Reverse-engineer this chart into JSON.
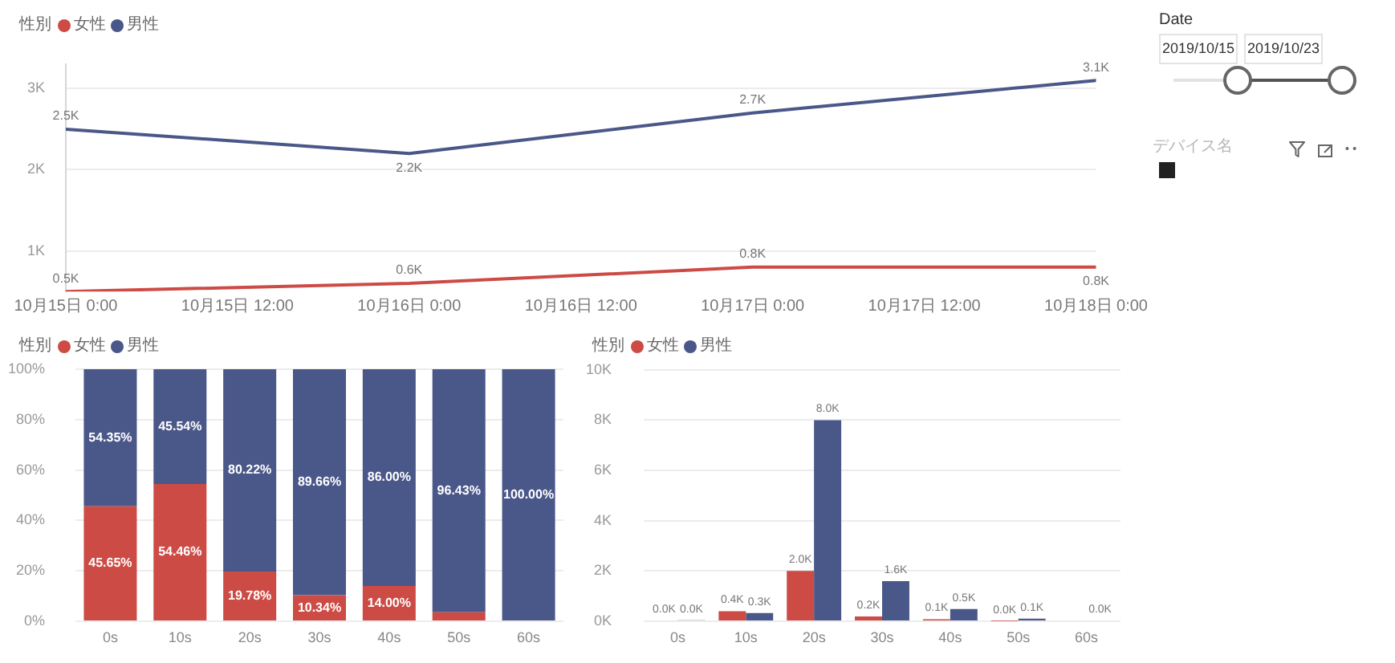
{
  "chart_data": [
    {
      "type": "line",
      "x": [
        "2019-10-15T00:00",
        "2019-10-16T00:00",
        "2019-10-17T00:00",
        "2019-10-18T00:00"
      ],
      "series": [
        {
          "name": "女性",
          "color": "#cd4b45",
          "values": [
            500,
            600,
            800,
            800
          ],
          "value_labels": [
            "0.5K",
            "0.6K",
            "0.8K",
            "0.8K"
          ]
        },
        {
          "name": "男性",
          "color": "#4a5789",
          "values": [
            2500,
            2200,
            2700,
            3100
          ],
          "value_labels": [
            "2.5K",
            "2.2K",
            "2.7K",
            "3.1K"
          ]
        }
      ],
      "xlim": [
        "2019-10-15T00:00",
        "2019-10-18T00:00"
      ],
      "xticks": [
        {
          "value": "2019-10-15T00:00",
          "label": "10月15日 0:00"
        },
        {
          "value": "2019-10-15T12:00",
          "label": "10月15日 12:00"
        },
        {
          "value": "2019-10-16T00:00",
          "label": "10月16日 0:00"
        },
        {
          "value": "2019-10-16T12:00",
          "label": "10月16日 12:00"
        },
        {
          "value": "2019-10-17T00:00",
          "label": "10月17日 0:00"
        },
        {
          "value": "2019-10-17T12:00",
          "label": "10月17日 12:00"
        },
        {
          "value": "2019-10-18T00:00",
          "label": "10月18日 0:00"
        }
      ],
      "ylim": [
        500,
        3300
      ],
      "yticks": [
        {
          "value": 1000,
          "label": "1K"
        },
        {
          "value": 2000,
          "label": "2K"
        },
        {
          "value": 3000,
          "label": "3K"
        }
      ],
      "legend_title": "性別",
      "legend": "top left",
      "grid": "y"
    },
    {
      "type": "other",
      "title": "Date",
      "annotations": [
        "2019/10/15",
        "2019/10/23",
        "デバイス名"
      ]
    },
    {
      "type": "bar",
      "stacked": true,
      "categories": [
        "0s",
        "10s",
        "20s",
        "30s",
        "40s",
        "50s",
        "60s"
      ],
      "series": [
        {
          "name": "女性",
          "color": "#cd4b45",
          "values": [
            45.65,
            54.46,
            19.78,
            10.34,
            14.0,
            3.6,
            0
          ],
          "value_labels": [
            "45.65%",
            "54.46%",
            "19.78%",
            "10.34%",
            "14.00%",
            null,
            null
          ]
        },
        {
          "name": "男性",
          "color": "#4a5789",
          "values": [
            54.35,
            45.54,
            80.22,
            89.66,
            86.0,
            96.43,
            100.0
          ],
          "value_labels": [
            "54.35%",
            "45.54%",
            "80.22%",
            "89.66%",
            "86.00%",
            "96.43%",
            "100.00%"
          ]
        }
      ],
      "ylim": [
        0,
        100
      ],
      "yticks": [
        {
          "value": 0,
          "label": "0%"
        },
        {
          "value": 20,
          "label": "20%"
        },
        {
          "value": 40,
          "label": "40%"
        },
        {
          "value": 60,
          "label": "60%"
        },
        {
          "value": 80,
          "label": "80%"
        },
        {
          "value": 100,
          "label": "100%"
        }
      ],
      "legend_title": "性別",
      "legend": "top left",
      "grid": "y"
    },
    {
      "type": "bar",
      "categories": [
        "0s",
        "10s",
        "20s",
        "30s",
        "40s",
        "50s",
        "60s"
      ],
      "series": [
        {
          "name": "女性",
          "color": "#cd4b45",
          "values": [
            30,
            400,
            2000,
            190,
            80,
            10,
            null
          ],
          "value_labels": [
            "0.0K",
            "0.4K",
            "2.0K",
            "0.2K",
            "0.1K",
            "0.0K",
            null
          ]
        },
        {
          "name": "男性",
          "color": "#4a5789",
          "values": [
            40,
            330,
            8000,
            1600,
            490,
            100,
            30
          ],
          "value_labels": [
            "0.0K",
            "0.3K",
            "8.0K",
            "1.6K",
            "0.5K",
            "0.1K",
            "0.0K"
          ]
        }
      ],
      "ylim": [
        0,
        10000
      ],
      "yticks": [
        {
          "value": 0,
          "label": "0K"
        },
        {
          "value": 2000,
          "label": "2K"
        },
        {
          "value": 4000,
          "label": "4K"
        },
        {
          "value": 6000,
          "label": "6K"
        },
        {
          "value": 8000,
          "label": "8K"
        },
        {
          "value": 10000,
          "label": "10K"
        }
      ],
      "legend_title": "性別",
      "legend": "top left",
      "grid": "y"
    }
  ]
}
